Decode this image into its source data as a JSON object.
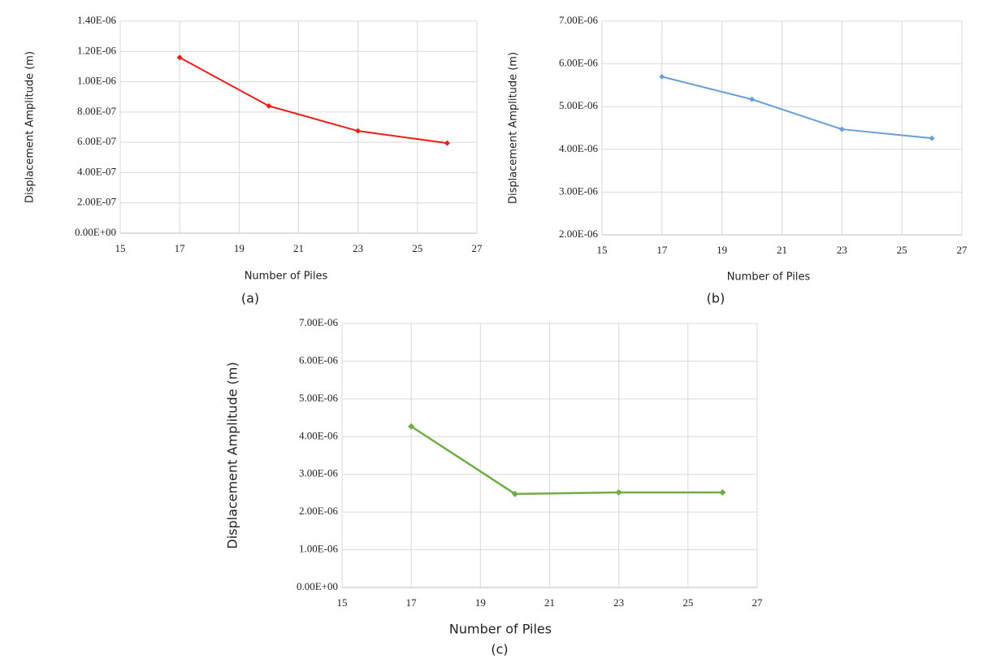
{
  "chart_data": [
    {
      "type": "line",
      "caption": "(a)",
      "xlabel": "Number of Piles",
      "ylabel": "Displacement Amplitude (m)",
      "x": [
        17,
        20,
        23,
        26
      ],
      "series": [
        {
          "color": "#e8201c",
          "values": [
            1.16e-06,
            8.4e-07,
            6.75e-07,
            5.95e-07
          ]
        }
      ],
      "xlim": [
        15,
        27
      ],
      "xticks": [
        15,
        17,
        19,
        21,
        23,
        25,
        27
      ],
      "ylim": [
        0,
        1.4e-06
      ],
      "yticks": [
        {
          "value": 0,
          "label": "0.00E+00"
        },
        {
          "value": 2e-07,
          "label": "2.00E-07"
        },
        {
          "value": 4e-07,
          "label": "4.00E-07"
        },
        {
          "value": 6e-07,
          "label": "6.00E-07"
        },
        {
          "value": 8e-07,
          "label": "8.00E-07"
        },
        {
          "value": 1e-06,
          "label": "1.00E-06"
        },
        {
          "value": 1.2e-06,
          "label": "1.20E-06"
        },
        {
          "value": 1.4e-06,
          "label": "1.40E-06"
        }
      ],
      "grid": true
    },
    {
      "type": "line",
      "caption": "(b)",
      "xlabel": "Number of Piles",
      "ylabel": "Displacement Amplitude (m)",
      "x": [
        17,
        20,
        23,
        26
      ],
      "series": [
        {
          "color": "#6a9fd8",
          "values": [
            5.7e-06,
            5.17e-06,
            4.47e-06,
            4.26e-06
          ]
        }
      ],
      "xlim": [
        15,
        27
      ],
      "xticks": [
        15,
        17,
        19,
        21,
        23,
        25,
        27
      ],
      "ylim": [
        2e-06,
        7e-06
      ],
      "yticks": [
        {
          "value": 2e-06,
          "label": "2.00E-06"
        },
        {
          "value": 3e-06,
          "label": "3.00E-06"
        },
        {
          "value": 4e-06,
          "label": "4.00E-06"
        },
        {
          "value": 5e-06,
          "label": "5.00E-06"
        },
        {
          "value": 6e-06,
          "label": "6.00E-06"
        },
        {
          "value": 7e-06,
          "label": "7.00E-06"
        }
      ],
      "grid": true
    },
    {
      "type": "line",
      "caption": "(c)",
      "xlabel": "Number of Piles",
      "ylabel": "Displacement Amplitude (m)",
      "x": [
        17,
        20,
        23,
        26
      ],
      "series": [
        {
          "color": "#70ad47",
          "values": [
            4.27e-06,
            2.48e-06,
            2.52e-06,
            2.52e-06
          ]
        }
      ],
      "xlim": [
        15,
        27
      ],
      "xticks": [
        15,
        17,
        19,
        21,
        23,
        25,
        27
      ],
      "ylim": [
        0,
        7e-06
      ],
      "yticks": [
        {
          "value": 0,
          "label": "0.00E+00"
        },
        {
          "value": 1e-06,
          "label": "1.00E-06"
        },
        {
          "value": 2e-06,
          "label": "2.00E-06"
        },
        {
          "value": 3e-06,
          "label": "3.00E-06"
        },
        {
          "value": 4e-06,
          "label": "4.00E-06"
        },
        {
          "value": 5e-06,
          "label": "5.00E-06"
        },
        {
          "value": 6e-06,
          "label": "6.00E-06"
        },
        {
          "value": 7e-06,
          "label": "7.00E-06"
        }
      ],
      "grid": true
    }
  ]
}
